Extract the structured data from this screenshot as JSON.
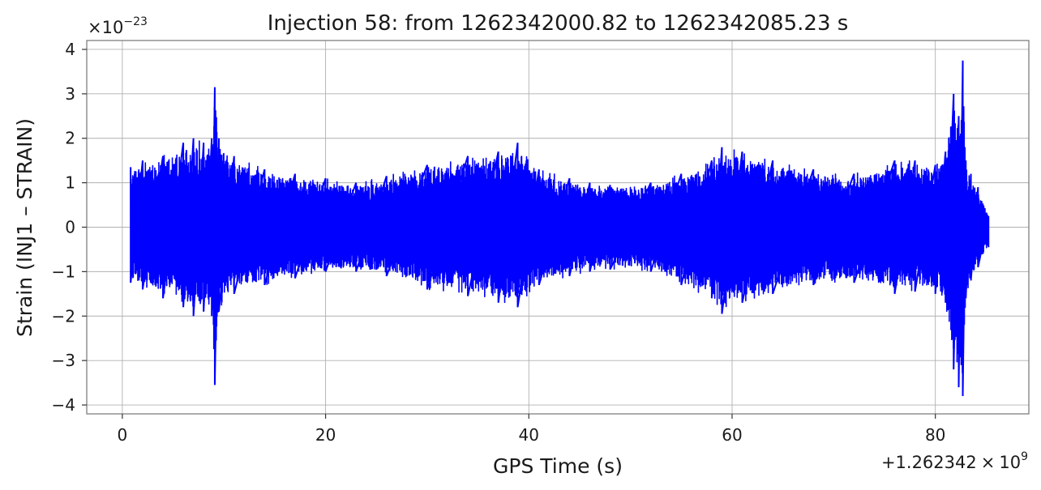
{
  "chart_data": {
    "type": "line",
    "title": "Injection 58: from 1262342000.82 to 1262342085.23 s",
    "xlabel": "GPS Time (s)",
    "ylabel": "Strain (INJ1 – STRAIN)",
    "x_offset_text": "+1.262342",
    "x_offset_times": "×",
    "x_offset_base": "10",
    "x_offset_exp": "9",
    "y_scale_times": "×",
    "y_scale_base": "10",
    "y_scale_exp": "−23",
    "xlim": [
      -3.5,
      89.2
    ],
    "ylim": [
      -4.2,
      4.2
    ],
    "x_ticks": [
      0,
      20,
      40,
      60,
      80
    ],
    "x_tick_labels": [
      "0",
      "20",
      "40",
      "60",
      "80"
    ],
    "y_ticks": [
      -4,
      -3,
      -2,
      -1,
      0,
      1,
      2,
      3,
      4
    ],
    "y_tick_labels": [
      "−4",
      "−3",
      "−2",
      "−1",
      "0",
      "1",
      "2",
      "3",
      "4"
    ],
    "grid": true,
    "series_color": "#0000ff",
    "grid_color": "#b0b0b0",
    "series": [
      {
        "x_range": [
          0.82,
          85.23
        ],
        "envelope_x": [
          0.82,
          2,
          4,
          6,
          7,
          8,
          8.8,
          9.1,
          9.5,
          11,
          14,
          17,
          20,
          23,
          26,
          30,
          34,
          37,
          38.9,
          41,
          44,
          46,
          48,
          52,
          55,
          58,
          59,
          61,
          64,
          68,
          72,
          76,
          78,
          80,
          81,
          81.8,
          82.3,
          82.7,
          83.0,
          83.5,
          84.2,
          85.23
        ],
        "envelope_upper": [
          1.35,
          1.5,
          1.6,
          1.9,
          2.0,
          1.9,
          2.0,
          3.15,
          2.0,
          1.6,
          1.3,
          1.2,
          1.1,
          1.0,
          1.15,
          1.4,
          1.6,
          1.7,
          1.9,
          1.3,
          1.1,
          1.0,
          0.95,
          1.0,
          1.2,
          1.5,
          1.8,
          1.7,
          1.5,
          1.3,
          1.2,
          1.5,
          1.5,
          1.4,
          1.7,
          3.0,
          2.5,
          3.75,
          1.5,
          1.2,
          0.9,
          0.25
        ],
        "envelope_lower": [
          -1.25,
          -1.4,
          -1.6,
          -1.8,
          -2.0,
          -1.9,
          -2.0,
          -3.55,
          -1.9,
          -1.5,
          -1.3,
          -1.15,
          -1.0,
          -1.0,
          -1.1,
          -1.4,
          -1.55,
          -1.7,
          -1.8,
          -1.3,
          -1.1,
          -1.0,
          -0.95,
          -1.0,
          -1.3,
          -1.6,
          -1.95,
          -1.7,
          -1.5,
          -1.3,
          -1.25,
          -1.5,
          -1.45,
          -1.5,
          -1.7,
          -3.2,
          -3.6,
          -3.8,
          -1.6,
          -1.2,
          -0.9,
          -0.45
        ]
      }
    ]
  }
}
